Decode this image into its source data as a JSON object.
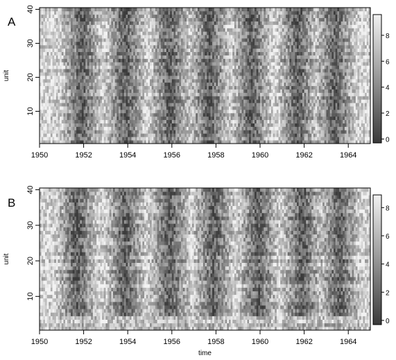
{
  "chart_data": [
    {
      "type": "heatmap",
      "panel_label": "A",
      "xlabel": "",
      "ylabel": "unit",
      "x_range": [
        1950,
        1965
      ],
      "y_range": [
        0.5,
        40.5
      ],
      "x_ticks": [
        "1950",
        "1952",
        "1954",
        "1956",
        "1958",
        "1960",
        "1962",
        "1964"
      ],
      "y_ticks": [
        "10",
        "20",
        "30",
        "40"
      ],
      "colorbar": {
        "min": -0.3,
        "max": 9.6,
        "ticks": [
          "0",
          "2",
          "4",
          "6",
          "8"
        ],
        "low_color": "#3a3a3a",
        "high_color": "#f2f2f2"
      },
      "n_units": 40,
      "n_time_steps": 180,
      "dark_band_centers": [
        1951.9,
        1953.9,
        1955.9,
        1957.7,
        1959.6,
        1961.7,
        1963.4
      ],
      "pattern": "seasonal: low values (dark) near each even-year start, high values (light) mid-period, with strong unit-to-unit noise"
    },
    {
      "type": "heatmap",
      "panel_label": "B",
      "xlabel": "time",
      "ylabel": "unit",
      "x_range": [
        1950,
        1965
      ],
      "y_range": [
        0.5,
        40.5
      ],
      "x_ticks": [
        "1950",
        "1952",
        "1954",
        "1956",
        "1958",
        "1960",
        "1962",
        "1964"
      ],
      "y_ticks": [
        "10",
        "20",
        "30",
        "40"
      ],
      "colorbar": {
        "min": -0.3,
        "max": 8.9,
        "ticks": [
          "0",
          "2",
          "4",
          "6",
          "8"
        ],
        "low_color": "#3a3a3a",
        "high_color": "#f2f2f2"
      },
      "n_units": 40,
      "n_time_steps": 180,
      "dark_band_centers": [
        1951.7,
        1953.9,
        1955.9,
        1957.9,
        1959.9,
        1961.9,
        1963.6
      ],
      "pattern": "seasonal: low values (dark) near each even-year start, high values (light) mid-period; lowest units mostly light"
    }
  ]
}
